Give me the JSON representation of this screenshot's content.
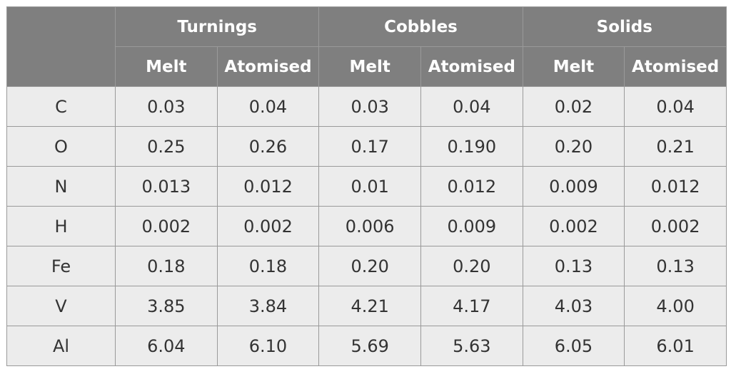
{
  "table": {
    "groups": [
      "Turnings",
      "Cobbles",
      "Solids"
    ],
    "subheaders": [
      "Melt",
      "Atomised"
    ],
    "rows": [
      {
        "element": "C",
        "values": [
          "0.03",
          "0.04",
          "0.03",
          "0.04",
          "0.02",
          "0.04"
        ]
      },
      {
        "element": "O",
        "values": [
          "0.25",
          "0.26",
          "0.17",
          "0.190",
          "0.20",
          "0.21"
        ]
      },
      {
        "element": "N",
        "values": [
          "0.013",
          "0.012",
          "0.01",
          "0.012",
          "0.009",
          "0.012"
        ]
      },
      {
        "element": "H",
        "values": [
          "0.002",
          "0.002",
          "0.006",
          "0.009",
          "0.002",
          "0.002"
        ]
      },
      {
        "element": "Fe",
        "values": [
          "0.18",
          "0.18",
          "0.20",
          "0.20",
          "0.13",
          "0.13"
        ]
      },
      {
        "element": "V",
        "values": [
          "3.85",
          "3.84",
          "4.21",
          "4.17",
          "4.03",
          "4.00"
        ]
      },
      {
        "element": "Al",
        "values": [
          "6.04",
          "6.10",
          "5.69",
          "5.63",
          "6.05",
          "6.01"
        ]
      }
    ]
  },
  "colors": {
    "header_bg": "#7f7f7f",
    "header_text": "#ffffff",
    "cell_bg": "#ececec",
    "cell_text": "#333333",
    "border": "#9a9a9a"
  }
}
